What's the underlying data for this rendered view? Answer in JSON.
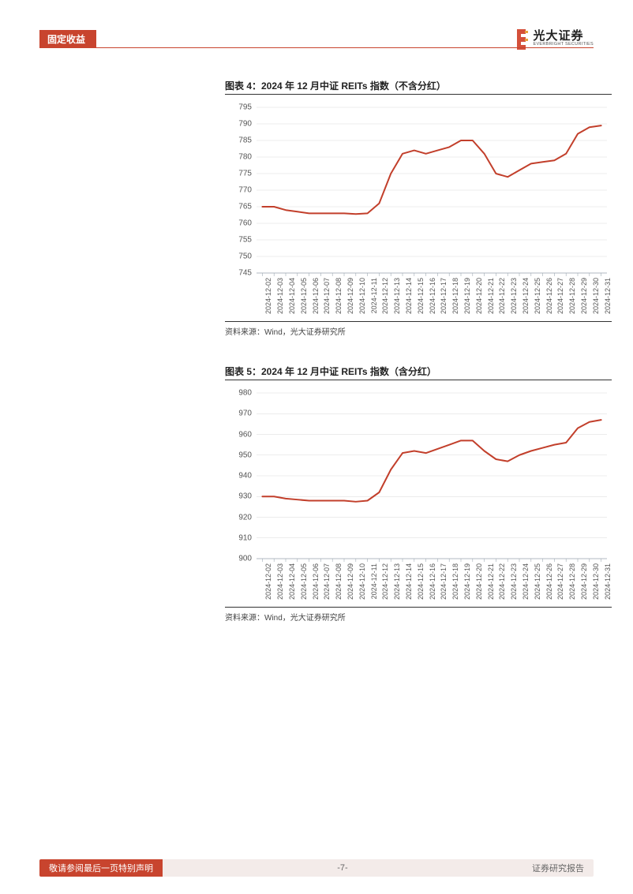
{
  "header": {
    "category": "固定收益",
    "brand_cn": "光大证券",
    "brand_en": "EVERBRIGHT SECURITIES",
    "brand_color": "#c8442e"
  },
  "chart1": {
    "title": "图表 4：2024 年 12 月中证 REITs 指数（不含分红）",
    "source": "资料来源：Wind，光大证券研究所",
    "type": "line",
    "line_color": "#c23f2b",
    "line_width": 2,
    "grid_color": "#d9d9d9",
    "axis_color": "#9faab3",
    "background_color": "#ffffff",
    "ylim": [
      745,
      795
    ],
    "ytick_step": 5,
    "yticks": [
      745,
      750,
      755,
      760,
      765,
      770,
      775,
      780,
      785,
      790,
      795
    ],
    "label_fontsize": 10,
    "categories": [
      "2024-12-02",
      "2024-12-03",
      "2024-12-04",
      "2024-12-05",
      "2024-12-06",
      "2024-12-07",
      "2024-12-08",
      "2024-12-09",
      "2024-12-10",
      "2024-12-11",
      "2024-12-12",
      "2024-12-13",
      "2024-12-14",
      "2024-12-15",
      "2024-12-16",
      "2024-12-17",
      "2024-12-18",
      "2024-12-19",
      "2024-12-20",
      "2024-12-21",
      "2024-12-22",
      "2024-12-23",
      "2024-12-24",
      "2024-12-25",
      "2024-12-26",
      "2024-12-27",
      "2024-12-28",
      "2024-12-29",
      "2024-12-30",
      "2024-12-31"
    ],
    "values": [
      765,
      765,
      764,
      763.5,
      763,
      763,
      763,
      763,
      762.8,
      763,
      766,
      775,
      781,
      782,
      781,
      782,
      783,
      785,
      785,
      781,
      775,
      774,
      776,
      778,
      778.5,
      779,
      781,
      787,
      789,
      789.5
    ]
  },
  "chart2": {
    "title": "图表 5：2024 年 12 月中证 REITs 指数（含分红）",
    "source": "资料来源：Wind，光大证券研究所",
    "type": "line",
    "line_color": "#c23f2b",
    "line_width": 2,
    "grid_color": "#d9d9d9",
    "axis_color": "#9faab3",
    "background_color": "#ffffff",
    "ylim": [
      900,
      980
    ],
    "ytick_step": 10,
    "yticks": [
      900,
      910,
      920,
      930,
      940,
      950,
      960,
      970,
      980
    ],
    "label_fontsize": 10,
    "categories": [
      "2024-12-02",
      "2024-12-03",
      "2024-12-04",
      "2024-12-05",
      "2024-12-06",
      "2024-12-07",
      "2024-12-08",
      "2024-12-09",
      "2024-12-10",
      "2024-12-11",
      "2024-12-12",
      "2024-12-13",
      "2024-12-14",
      "2024-12-15",
      "2024-12-16",
      "2024-12-17",
      "2024-12-18",
      "2024-12-19",
      "2024-12-20",
      "2024-12-21",
      "2024-12-22",
      "2024-12-23",
      "2024-12-24",
      "2024-12-25",
      "2024-12-26",
      "2024-12-27",
      "2024-12-28",
      "2024-12-29",
      "2024-12-30",
      "2024-12-31"
    ],
    "values": [
      930,
      930,
      929,
      928.5,
      928,
      928,
      928,
      928,
      927.5,
      928,
      932,
      943,
      951,
      952,
      951,
      953,
      955,
      957,
      957,
      952,
      948,
      947,
      950,
      952,
      953.5,
      955,
      956,
      963,
      966,
      967
    ]
  },
  "footer": {
    "disclaimer": "敬请参阅最后一页特别声明",
    "page": "-7-",
    "doc_type": "证券研究报告"
  }
}
